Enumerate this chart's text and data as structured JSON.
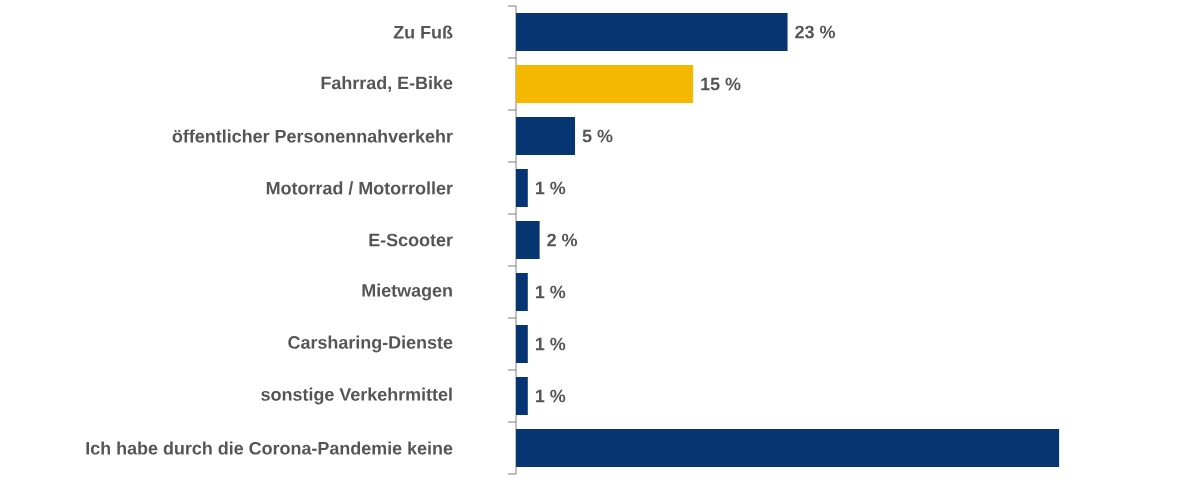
{
  "chart_data": {
    "type": "bar",
    "orientation": "horizontal",
    "categories": [
      "Zu Fuß",
      "Fahrrad, E-Bike",
      "öffentlicher Personennahverkehr",
      "Motorrad / Motorroller",
      "E-Scooter",
      "Mietwagen",
      "Carsharing-Dienste",
      "sonstige Verkehrmittel",
      "Ich habe durch die Corona-Pandemie keine"
    ],
    "values": [
      23,
      15,
      5,
      1,
      2,
      1,
      1,
      1,
      46
    ],
    "value_labels": [
      "23 %",
      "15 %",
      "5 %",
      "1 %",
      "2 %",
      "1 %",
      "1 %",
      "1 %",
      null
    ],
    "colors": [
      "#063672",
      "#f5b800",
      "#063672",
      "#063672",
      "#063672",
      "#063672",
      "#063672",
      "#063672",
      "#063672"
    ]
  }
}
